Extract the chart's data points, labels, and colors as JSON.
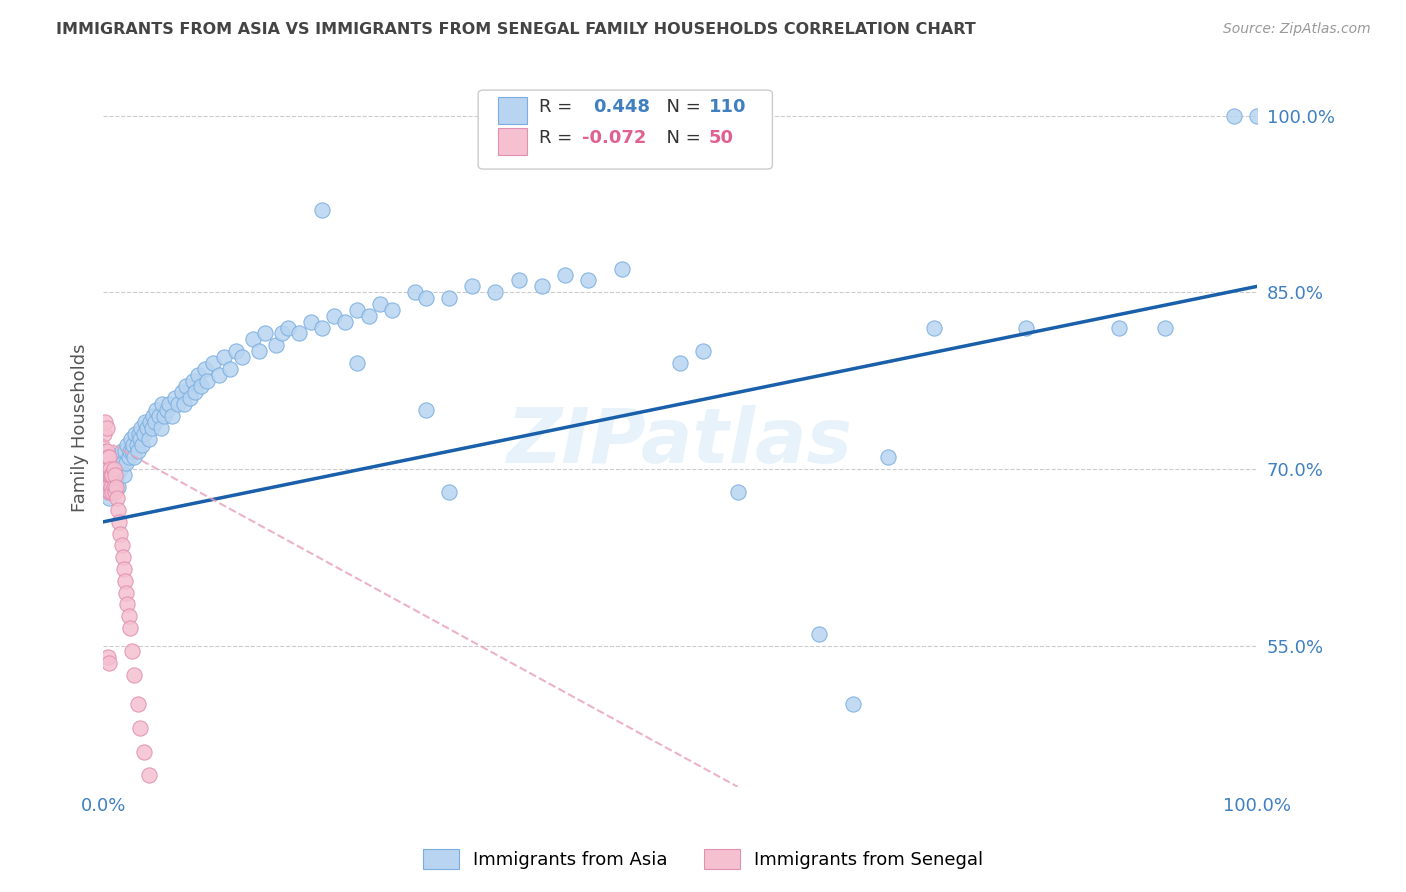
{
  "title": "IMMIGRANTS FROM ASIA VS IMMIGRANTS FROM SENEGAL FAMILY HOUSEHOLDS CORRELATION CHART",
  "source": "Source: ZipAtlas.com",
  "ylabel": "Family Households",
  "xlim": [
    0,
    1.0
  ],
  "ylim": [
    0.43,
    1.04
  ],
  "xtick_labels": [
    "0.0%",
    "100.0%"
  ],
  "ytick_labels_right": [
    "55.0%",
    "70.0%",
    "85.0%",
    "100.0%"
  ],
  "ytick_positions_right": [
    0.55,
    0.7,
    0.85,
    1.0
  ],
  "legend_label_asia": "Immigrants from Asia",
  "legend_label_senegal": "Immigrants from Senegal",
  "watermark": "ZIPatlas",
  "color_asia_fill": "#b8d4f0",
  "color_asia_edge": "#7aaee0",
  "color_senegal_fill": "#f5c0d0",
  "color_senegal_edge": "#e090b0",
  "color_line_asia": "#1a5faa",
  "color_line_senegal": "#e8a0b8",
  "color_r_asia": "#4080c0",
  "color_r_senegal": "#e06090",
  "color_n_asia": "#e06000",
  "color_n_senegal": "#e06000",
  "asia_line_x0": 0.0,
  "asia_line_y0": 0.655,
  "asia_line_x1": 1.0,
  "asia_line_y1": 0.855,
  "senegal_line_x0": 0.0,
  "senegal_line_y0": 0.725,
  "senegal_line_x1": 0.55,
  "senegal_line_y1": 0.43,
  "asia_x": [
    0.002,
    0.003,
    0.004,
    0.005,
    0.005,
    0.006,
    0.007,
    0.008,
    0.009,
    0.01,
    0.01,
    0.011,
    0.012,
    0.013,
    0.014,
    0.015,
    0.016,
    0.017,
    0.018,
    0.019,
    0.02,
    0.021,
    0.022,
    0.023,
    0.024,
    0.025,
    0.026,
    0.027,
    0.028,
    0.029,
    0.03,
    0.031,
    0.032,
    0.033,
    0.034,
    0.035,
    0.036,
    0.038,
    0.04,
    0.041,
    0.042,
    0.043,
    0.045,
    0.046,
    0.048,
    0.05,
    0.051,
    0.053,
    0.055,
    0.057,
    0.06,
    0.062,
    0.065,
    0.068,
    0.07,
    0.072,
    0.075,
    0.078,
    0.08,
    0.082,
    0.085,
    0.088,
    0.09,
    0.095,
    0.1,
    0.105,
    0.11,
    0.115,
    0.12,
    0.13,
    0.135,
    0.14,
    0.15,
    0.155,
    0.16,
    0.17,
    0.18,
    0.19,
    0.2,
    0.21,
    0.22,
    0.23,
    0.24,
    0.25,
    0.27,
    0.28,
    0.3,
    0.32,
    0.34,
    0.36,
    0.38,
    0.4,
    0.42,
    0.45,
    0.5,
    0.52,
    0.55,
    0.62,
    0.65,
    0.68,
    0.72,
    0.8,
    0.88,
    0.92,
    0.98,
    1.0,
    0.3,
    0.28,
    0.22,
    0.19
  ],
  "asia_y": [
    0.68,
    0.69,
    0.685,
    0.675,
    0.695,
    0.69,
    0.68,
    0.685,
    0.7,
    0.69,
    0.695,
    0.71,
    0.695,
    0.685,
    0.705,
    0.7,
    0.715,
    0.705,
    0.695,
    0.715,
    0.705,
    0.72,
    0.71,
    0.715,
    0.725,
    0.715,
    0.72,
    0.71,
    0.73,
    0.72,
    0.715,
    0.73,
    0.725,
    0.735,
    0.72,
    0.73,
    0.74,
    0.735,
    0.725,
    0.74,
    0.735,
    0.745,
    0.74,
    0.75,
    0.745,
    0.735,
    0.755,
    0.745,
    0.75,
    0.755,
    0.745,
    0.76,
    0.755,
    0.765,
    0.755,
    0.77,
    0.76,
    0.775,
    0.765,
    0.78,
    0.77,
    0.785,
    0.775,
    0.79,
    0.78,
    0.795,
    0.785,
    0.8,
    0.795,
    0.81,
    0.8,
    0.815,
    0.805,
    0.815,
    0.82,
    0.815,
    0.825,
    0.82,
    0.83,
    0.825,
    0.835,
    0.83,
    0.84,
    0.835,
    0.85,
    0.845,
    0.845,
    0.855,
    0.85,
    0.86,
    0.855,
    0.865,
    0.86,
    0.87,
    0.79,
    0.8,
    0.68,
    0.56,
    0.5,
    0.71,
    0.82,
    0.82,
    0.82,
    0.82,
    1.0,
    1.0,
    0.68,
    0.75,
    0.79,
    0.92
  ],
  "senegal_x": [
    0.001,
    0.001,
    0.002,
    0.002,
    0.002,
    0.003,
    0.003,
    0.003,
    0.004,
    0.004,
    0.004,
    0.005,
    0.005,
    0.005,
    0.006,
    0.006,
    0.006,
    0.007,
    0.007,
    0.008,
    0.008,
    0.009,
    0.009,
    0.01,
    0.01,
    0.011,
    0.012,
    0.013,
    0.014,
    0.015,
    0.016,
    0.017,
    0.018,
    0.019,
    0.02,
    0.021,
    0.022,
    0.023,
    0.025,
    0.027,
    0.03,
    0.032,
    0.035,
    0.04,
    0.05,
    0.001,
    0.002,
    0.003,
    0.004,
    0.005
  ],
  "senegal_y": [
    0.695,
    0.71,
    0.685,
    0.7,
    0.715,
    0.69,
    0.7,
    0.715,
    0.695,
    0.71,
    0.685,
    0.695,
    0.71,
    0.68,
    0.695,
    0.68,
    0.7,
    0.685,
    0.695,
    0.68,
    0.695,
    0.685,
    0.7,
    0.68,
    0.695,
    0.685,
    0.675,
    0.665,
    0.655,
    0.645,
    0.635,
    0.625,
    0.615,
    0.605,
    0.595,
    0.585,
    0.575,
    0.565,
    0.545,
    0.525,
    0.5,
    0.48,
    0.46,
    0.44,
    0.42,
    0.73,
    0.74,
    0.735,
    0.54,
    0.535
  ]
}
